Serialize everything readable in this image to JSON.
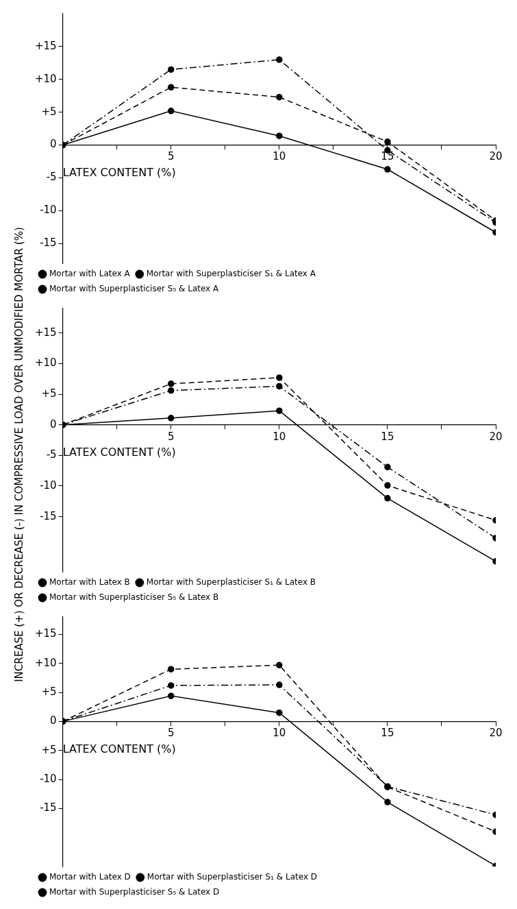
{
  "chart_data": [
    {
      "type": "line",
      "xlabel": "LATEX CONTENT (%)",
      "x": [
        0,
        5,
        10,
        15,
        20
      ],
      "xlim": [
        0,
        20
      ],
      "ylim": [
        -18,
        20
      ],
      "xticks": [
        {
          "value": 0,
          "label": null
        },
        {
          "value": 2.5,
          "label": null
        },
        5,
        {
          "value": 7.5,
          "label": null
        },
        10,
        {
          "value": 12.5,
          "label": null
        },
        15,
        {
          "value": 17.5,
          "label": null
        },
        20
      ],
      "yticks": [
        {
          "value": 15,
          "label": "+15"
        },
        {
          "value": 10,
          "label": "+10"
        },
        {
          "value": 5,
          "label": "+5"
        },
        {
          "value": 0,
          "label": "0"
        },
        {
          "value": -5,
          "label": "-5"
        },
        {
          "value": -10,
          "label": "-10"
        },
        {
          "value": -15,
          "label": "-15"
        }
      ],
      "grid": false,
      "legend": "bottom left",
      "marker": "circle",
      "series": [
        {
          "name": "Mortar with Latex A",
          "color": "#000000",
          "line_style": "solid",
          "values": [
            0,
            5.2,
            1.4,
            -3.7,
            -13.3
          ]
        },
        {
          "name": "Mortar with Superplasticiser S₁ & Latex A",
          "color": "#000000",
          "line_style": "dashed",
          "values": [
            0,
            8.8,
            7.3,
            0.5,
            -11.5
          ]
        },
        {
          "name": "Mortar with Superplasticiser S₅ & Latex A",
          "color": "#000000",
          "line_style": "dashdot",
          "values": [
            0,
            11.5,
            13,
            -0.8,
            -11.8
          ]
        }
      ]
    },
    {
      "type": "line",
      "xlabel": "LATEX CONTENT (%)",
      "ylabel": "INCREASE (+) OR DECREASE (-) IN COMPRESSIVE LOAD OVER UNMODIFIED MORTAR (%)",
      "x": [
        0,
        5,
        10,
        15,
        20
      ],
      "xlim": [
        0,
        20
      ],
      "ylim": [
        -24,
        19
      ],
      "xticks": [
        {
          "value": 0,
          "label": null
        },
        {
          "value": 2.5,
          "label": null
        },
        5,
        {
          "value": 7.5,
          "label": null
        },
        10,
        {
          "value": 12.5,
          "label": null
        },
        15,
        {
          "value": 17.5,
          "label": null
        },
        20
      ],
      "yticks": [
        {
          "value": 15,
          "label": "+15"
        },
        {
          "value": 10,
          "label": "+10"
        },
        {
          "value": 5,
          "label": "+5"
        },
        {
          "value": 0,
          "label": "0"
        },
        {
          "value": -5,
          "label": "-5"
        },
        {
          "value": -10,
          "label": "-10"
        },
        {
          "value": -15,
          "label": "-15"
        }
      ],
      "grid": false,
      "legend": "bottom left",
      "marker": "circle",
      "series": [
        {
          "name": "Mortar with Latex B",
          "color": "#000000",
          "line_style": "solid",
          "values": [
            0,
            1.1,
            2.3,
            -12,
            -22.3
          ]
        },
        {
          "name": "Mortar with Superplasticiser S₁ & Latex B",
          "color": "#000000",
          "line_style": "dashed",
          "values": [
            0,
            6.7,
            7.7,
            -9.9,
            -15.6
          ]
        },
        {
          "name": "Mortar with Superplasticiser S₅ & Latex B",
          "color": "#000000",
          "line_style": "dashdot",
          "values": [
            0,
            5.6,
            6.3,
            -6.9,
            -18.5
          ]
        }
      ]
    },
    {
      "type": "line",
      "xlabel": "LATEX CONTENT (%)",
      "x": [
        0,
        5,
        10,
        15,
        20
      ],
      "xlim": [
        0,
        20
      ],
      "ylim": [
        -25,
        18
      ],
      "xticks": [
        {
          "value": 0,
          "label": null
        },
        {
          "value": 2.5,
          "label": null
        },
        5,
        {
          "value": 7.5,
          "label": null
        },
        10,
        {
          "value": 12.5,
          "label": null
        },
        15,
        {
          "value": 17.5,
          "label": null
        },
        20
      ],
      "yticks": [
        {
          "value": 15,
          "label": "+15"
        },
        {
          "value": 10,
          "label": "+10"
        },
        {
          "value": 5,
          "label": "+5"
        },
        {
          "value": 0,
          "label": "0"
        },
        {
          "value": -5,
          "label": "+5"
        },
        {
          "value": -10,
          "label": "-10"
        },
        {
          "value": -15,
          "label": "-15"
        }
      ],
      "grid": false,
      "legend": "bottom left",
      "marker": "circle",
      "series": [
        {
          "name": "Mortar with Latex D",
          "color": "#000000",
          "line_style": "solid",
          "values": [
            0,
            4.4,
            1.5,
            -13.9,
            -24.9
          ]
        },
        {
          "name": "Mortar with Superplasticiser S₁ & Latex D",
          "color": "#000000",
          "line_style": "dashed",
          "values": [
            0,
            9,
            9.7,
            -11.3,
            -19
          ]
        },
        {
          "name": "Mortar with Superplasticiser S₅ & Latex D",
          "color": "#000000",
          "line_style": "dashdot",
          "values": [
            0,
            6.2,
            6.3,
            -11.2,
            -16.1
          ]
        }
      ]
    }
  ]
}
